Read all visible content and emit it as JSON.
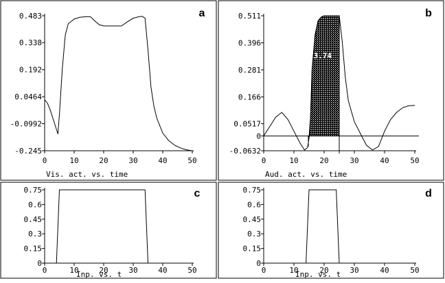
{
  "chart_data": [
    {
      "id": "a",
      "type": "line",
      "panel_label": "a",
      "caption": "Vis.  act.  vs.  time",
      "xlim": [
        0,
        50
      ],
      "ylim": [
        -0.245,
        0.483
      ],
      "x_ticks": [
        "0",
        "10",
        "20",
        "30",
        "40",
        "50"
      ],
      "y_ticks": [
        "0.483",
        "0.338",
        "0.192",
        "0.0464",
        "-0.0992",
        "-0.245"
      ],
      "series": [
        {
          "x": [
            0,
            1,
            2,
            3,
            4,
            4.5,
            5,
            6,
            7,
            8,
            10,
            12,
            14,
            15.5,
            17,
            18.5,
            20,
            22,
            24,
            26,
            28,
            30,
            32,
            33,
            34,
            35,
            36,
            37,
            38,
            40,
            42,
            44,
            46,
            48,
            50
          ],
          "y": [
            0.03,
            0.01,
            -0.03,
            -0.08,
            -0.13,
            -0.155,
            -0.05,
            0.2,
            0.38,
            0.44,
            0.465,
            0.475,
            0.478,
            0.478,
            0.455,
            0.435,
            0.428,
            0.428,
            0.428,
            0.428,
            0.45,
            0.47,
            0.478,
            0.48,
            0.47,
            0.3,
            0.1,
            -0.005,
            -0.07,
            -0.15,
            -0.19,
            -0.215,
            -0.23,
            -0.24,
            -0.245
          ]
        }
      ]
    },
    {
      "id": "b",
      "type": "area",
      "panel_label": "b",
      "caption": "Aud.  act.  vs.  time",
      "annotation": "3.74",
      "xlim": [
        0,
        50
      ],
      "ylim": [
        -0.0632,
        0.511
      ],
      "x_ticks": [
        "0",
        "10",
        "20",
        "30",
        "40",
        "50"
      ],
      "y_ticks": [
        "0.511",
        "0.396",
        "0.281",
        "0.166",
        "0.0517",
        "0",
        "-0.0632"
      ],
      "shaded_interval": [
        15,
        25
      ],
      "series": [
        {
          "x": [
            0,
            2,
            4,
            6,
            8,
            10,
            12,
            13.5,
            14.5,
            15,
            15.5,
            16,
            17,
            18,
            19,
            20,
            25,
            26,
            27,
            28,
            30,
            32,
            34,
            36,
            38,
            40,
            42,
            44,
            46,
            48,
            50
          ],
          "y": [
            0,
            0.04,
            0.08,
            0.1,
            0.07,
            0.02,
            -0.03,
            -0.06,
            -0.05,
            -0.01,
            0.08,
            0.28,
            0.43,
            0.49,
            0.505,
            0.511,
            0.511,
            0.4,
            0.25,
            0.15,
            0.06,
            0.01,
            -0.04,
            -0.06,
            -0.045,
            0.02,
            0.07,
            0.1,
            0.12,
            0.128,
            0.13
          ]
        }
      ]
    },
    {
      "id": "c",
      "type": "line",
      "panel_label": "c",
      "caption": "Inp.  vs.  t",
      "xlim": [
        0,
        50
      ],
      "ylim": [
        0,
        0.75
      ],
      "x_ticks": [
        "0",
        "10",
        "20",
        "30",
        "40",
        "50"
      ],
      "y_ticks": [
        "0.75",
        "0.6",
        "0.45",
        "0.3",
        "0.15",
        "0"
      ],
      "series": [
        {
          "x": [
            0,
            4,
            5,
            34,
            35,
            50
          ],
          "y": [
            0,
            0,
            0.75,
            0.75,
            0,
            0
          ]
        }
      ]
    },
    {
      "id": "d",
      "type": "line",
      "panel_label": "d",
      "caption": "Inp.  vs.  t",
      "xlim": [
        0,
        50
      ],
      "ylim": [
        0,
        0.75
      ],
      "x_ticks": [
        "0",
        "10",
        "20",
        "30",
        "40",
        "50"
      ],
      "y_ticks": [
        "0.75",
        "0.6",
        "0.45",
        "0.3",
        "0.15",
        "0"
      ],
      "series": [
        {
          "x": [
            0,
            14,
            15,
            24,
            25,
            50
          ],
          "y": [
            0,
            0,
            0.75,
            0.75,
            0,
            0
          ]
        }
      ]
    }
  ]
}
